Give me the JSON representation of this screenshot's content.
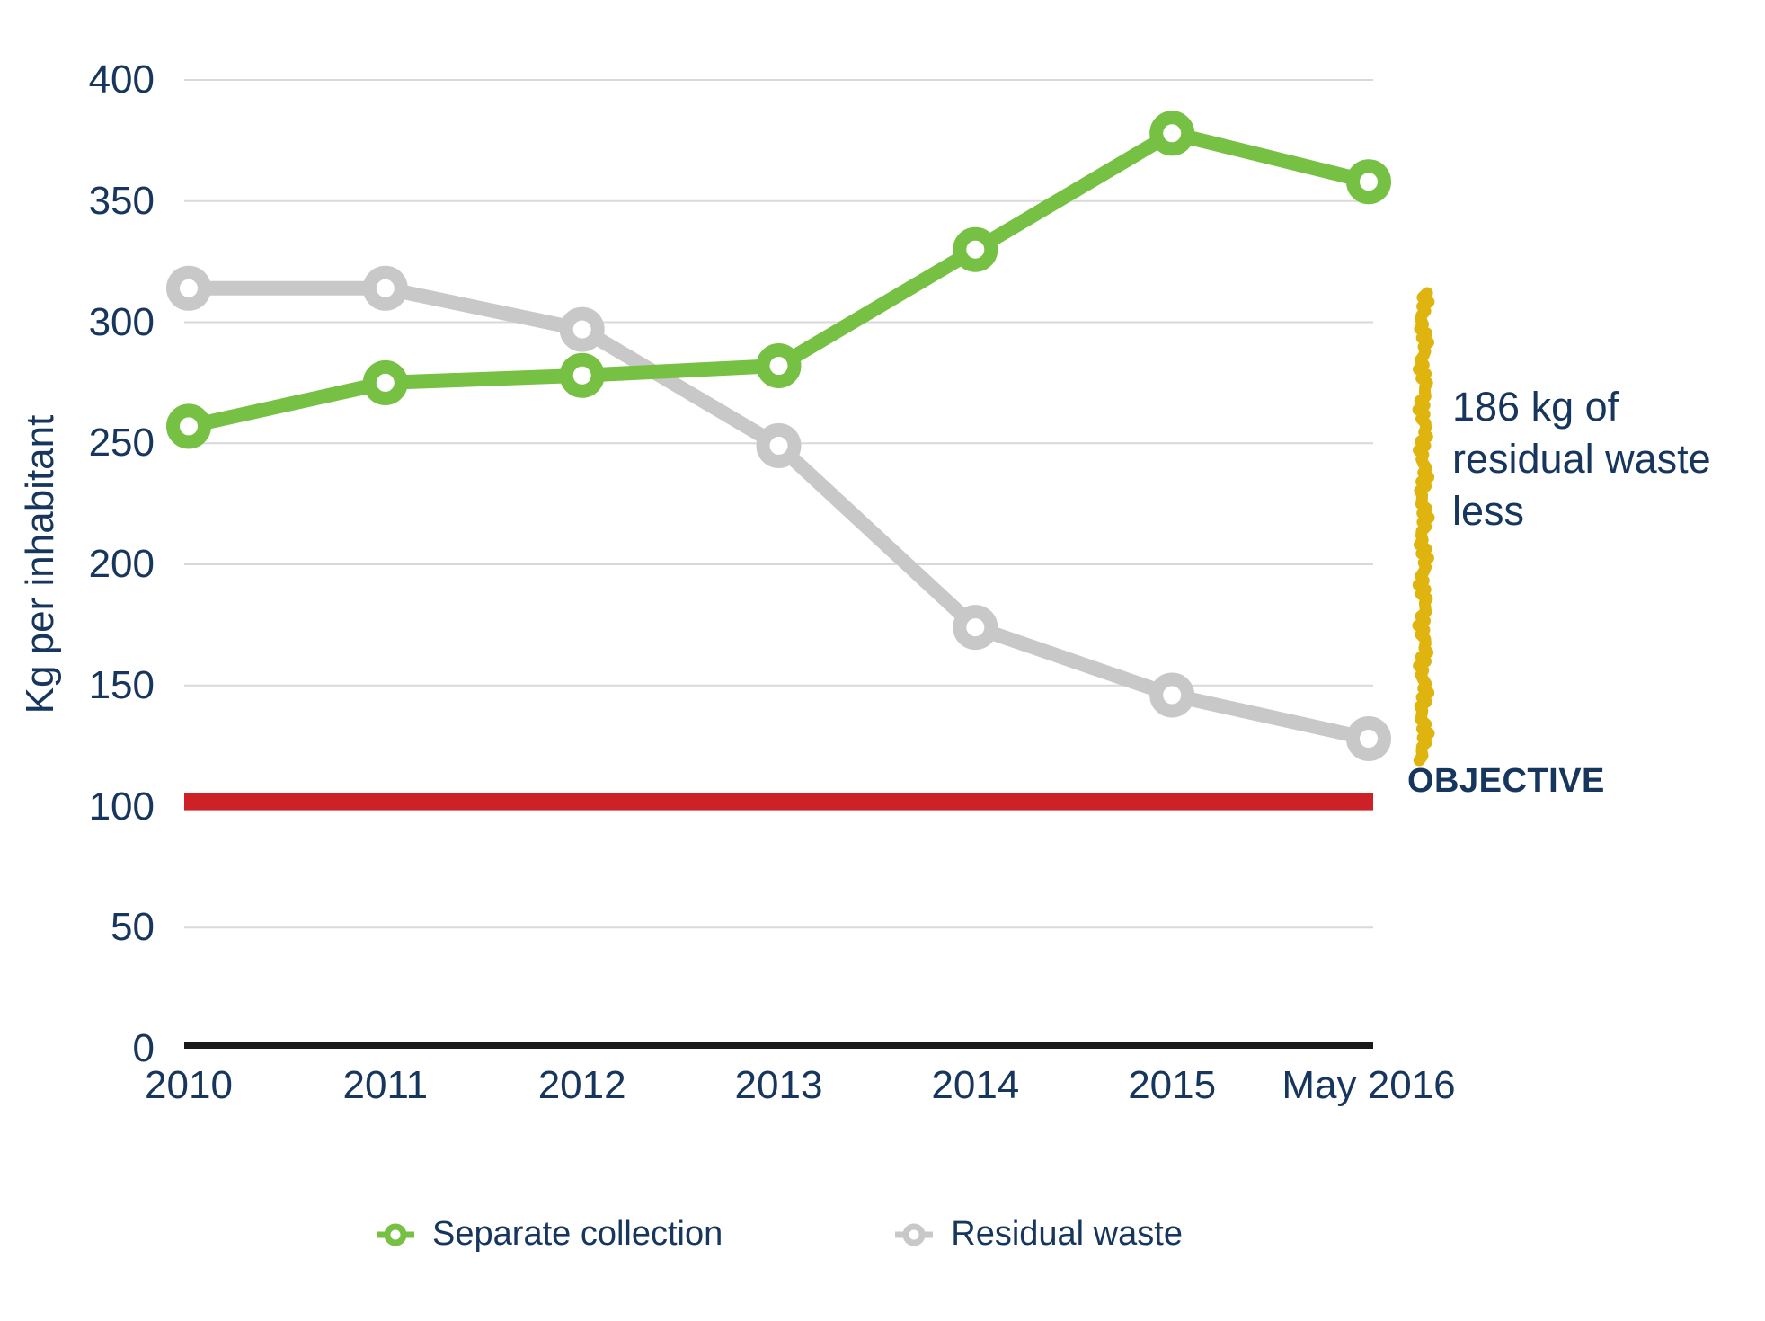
{
  "page": {
    "background": "#FFFFFF"
  },
  "colors": {
    "text_navy": "#17365D",
    "gridline": "#D9D9D9",
    "axis": "#1A1A1A"
  },
  "chart_data": {
    "type": "line",
    "title": "",
    "xlabel": "",
    "ylabel": "Kg per inhabitant",
    "ylim": [
      0,
      400
    ],
    "yticks": [
      0,
      50,
      100,
      150,
      200,
      250,
      300,
      350,
      400
    ],
    "grid": true,
    "categories": [
      "2010",
      "2011",
      "2012",
      "2013",
      "2014",
      "2015",
      "May 2016"
    ],
    "series": [
      {
        "name": "Separate collection",
        "color": "#76C043",
        "values": [
          257,
          275,
          278,
          282,
          330,
          378,
          358
        ]
      },
      {
        "name": "Residual waste",
        "color": "#C8C8C8",
        "values": [
          314,
          314,
          297,
          249,
          174,
          146,
          128
        ]
      }
    ],
    "objective_line": {
      "label": "OBJECTIVE",
      "value": 102,
      "color": "#CE2127"
    },
    "annotation": {
      "text": "186 kg of residual waste less",
      "lines": [
        "186 kg of",
        "residual waste",
        "less"
      ],
      "color": "#17365D",
      "squiggle_color": "#E0B40F"
    },
    "legend": {
      "position": "bottom",
      "items": [
        "Separate collection",
        "Residual waste"
      ]
    }
  }
}
